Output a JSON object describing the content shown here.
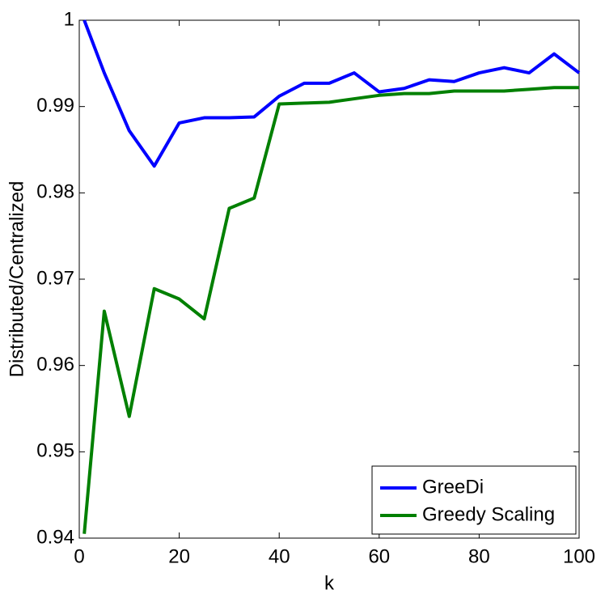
{
  "chart_data": {
    "type": "line",
    "x": [
      1,
      5,
      10,
      15,
      20,
      25,
      30,
      35,
      40,
      45,
      50,
      55,
      60,
      65,
      70,
      75,
      80,
      85,
      90,
      95,
      100
    ],
    "series": [
      {
        "name": "GreeDi",
        "color": "#0000ff",
        "values": [
          1.0,
          0.9939,
          0.9872,
          0.9831,
          0.9881,
          0.9887,
          0.9887,
          0.9888,
          0.9912,
          0.9927,
          0.9927,
          0.9939,
          0.9917,
          0.9921,
          0.9931,
          0.9929,
          0.9939,
          0.9945,
          0.9939,
          0.9961,
          0.9939
        ]
      },
      {
        "name": "Greedy Scaling",
        "color": "#008000",
        "values": [
          0.9405,
          0.9663,
          0.9541,
          0.9689,
          0.9677,
          0.9654,
          0.9782,
          0.9794,
          0.9903,
          0.9904,
          0.9905,
          0.9909,
          0.9913,
          0.9915,
          0.9915,
          0.9918,
          0.9918,
          0.9918,
          0.992,
          0.9922,
          0.9922
        ]
      }
    ],
    "xlabel": "k",
    "ylabel": "Distributed/Centralized",
    "xlim": [
      0,
      100
    ],
    "xticks": [
      0,
      20,
      40,
      60,
      80,
      100
    ],
    "ylim": [
      0.94,
      1
    ],
    "yticks": [
      0.94,
      0.95,
      0.96,
      0.97,
      0.98,
      0.99,
      1
    ],
    "legend": "lower-right"
  }
}
